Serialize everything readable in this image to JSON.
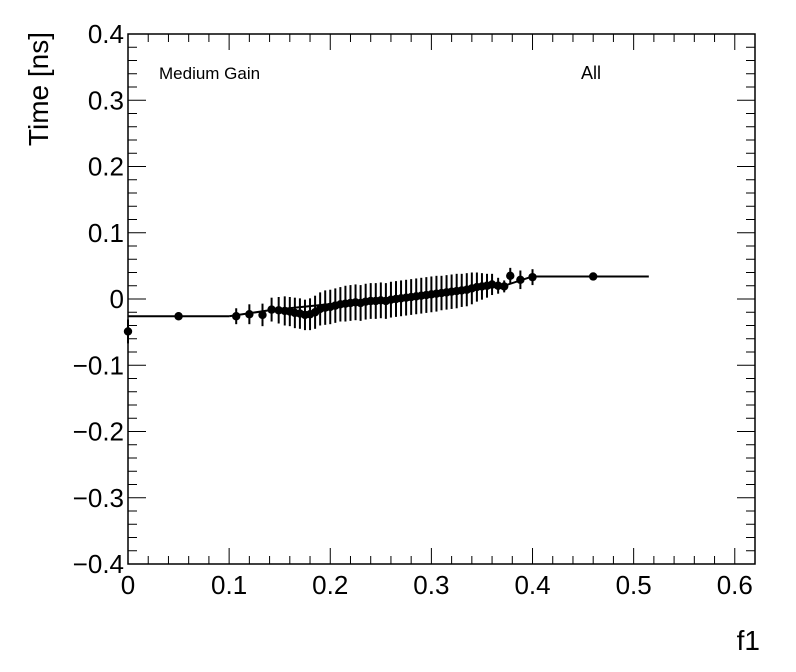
{
  "chart_data": {
    "type": "scatter",
    "xlabel": "f1",
    "ylabel": "Time [ns]",
    "xlim": [
      0,
      0.62
    ],
    "ylim": [
      -0.4,
      0.4
    ],
    "x_ticks": [
      0,
      0.1,
      0.2,
      0.3,
      0.4,
      0.5,
      0.6
    ],
    "x_tick_labels": [
      "0",
      "0.1",
      "0.2",
      "0.3",
      "0.4",
      "0.5",
      "0.6"
    ],
    "y_ticks": [
      -0.4,
      -0.3,
      -0.2,
      -0.1,
      0,
      0.1,
      0.2,
      0.3,
      0.4
    ],
    "y_tick_labels": [
      "−0.4",
      "−0.3",
      "−0.2",
      "−0.1",
      "0",
      "0.1",
      "0.2",
      "0.3",
      "0.4"
    ],
    "annotations": [
      "Medium Gain",
      "All"
    ],
    "grid": false,
    "points": [
      {
        "x": 0.0,
        "y": -0.049,
        "err": 0.018
      },
      {
        "x": 0.05,
        "y": -0.026,
        "err": 0.006
      },
      {
        "x": 0.107,
        "y": -0.026,
        "err": 0.012
      },
      {
        "x": 0.12,
        "y": -0.023,
        "err": 0.015
      },
      {
        "x": 0.133,
        "y": -0.024,
        "err": 0.017
      },
      {
        "x": 0.142,
        "y": -0.016,
        "err": 0.018
      },
      {
        "x": 0.149,
        "y": -0.017,
        "err": 0.02
      },
      {
        "x": 0.155,
        "y": -0.018,
        "err": 0.022
      },
      {
        "x": 0.16,
        "y": -0.019,
        "err": 0.022
      },
      {
        "x": 0.165,
        "y": -0.021,
        "err": 0.023
      },
      {
        "x": 0.17,
        "y": -0.022,
        "err": 0.023
      },
      {
        "x": 0.175,
        "y": -0.024,
        "err": 0.023
      },
      {
        "x": 0.18,
        "y": -0.023,
        "err": 0.024
      },
      {
        "x": 0.185,
        "y": -0.02,
        "err": 0.025
      },
      {
        "x": 0.19,
        "y": -0.015,
        "err": 0.025
      },
      {
        "x": 0.195,
        "y": -0.013,
        "err": 0.026
      },
      {
        "x": 0.2,
        "y": -0.012,
        "err": 0.026
      },
      {
        "x": 0.205,
        "y": -0.01,
        "err": 0.026
      },
      {
        "x": 0.21,
        "y": -0.008,
        "err": 0.026
      },
      {
        "x": 0.215,
        "y": -0.007,
        "err": 0.027
      },
      {
        "x": 0.22,
        "y": -0.006,
        "err": 0.027
      },
      {
        "x": 0.225,
        "y": -0.005,
        "err": 0.027
      },
      {
        "x": 0.23,
        "y": -0.006,
        "err": 0.027
      },
      {
        "x": 0.235,
        "y": -0.004,
        "err": 0.027
      },
      {
        "x": 0.24,
        "y": -0.003,
        "err": 0.027
      },
      {
        "x": 0.245,
        "y": -0.003,
        "err": 0.027
      },
      {
        "x": 0.25,
        "y": -0.002,
        "err": 0.027
      },
      {
        "x": 0.255,
        "y": -0.003,
        "err": 0.027
      },
      {
        "x": 0.26,
        "y": -0.001,
        "err": 0.027
      },
      {
        "x": 0.265,
        "y": 0.0,
        "err": 0.027
      },
      {
        "x": 0.27,
        "y": 0.001,
        "err": 0.027
      },
      {
        "x": 0.275,
        "y": 0.002,
        "err": 0.027
      },
      {
        "x": 0.28,
        "y": 0.003,
        "err": 0.027
      },
      {
        "x": 0.285,
        "y": 0.004,
        "err": 0.027
      },
      {
        "x": 0.29,
        "y": 0.005,
        "err": 0.027
      },
      {
        "x": 0.295,
        "y": 0.006,
        "err": 0.027
      },
      {
        "x": 0.3,
        "y": 0.007,
        "err": 0.027
      },
      {
        "x": 0.305,
        "y": 0.008,
        "err": 0.027
      },
      {
        "x": 0.31,
        "y": 0.009,
        "err": 0.026
      },
      {
        "x": 0.315,
        "y": 0.01,
        "err": 0.026
      },
      {
        "x": 0.32,
        "y": 0.011,
        "err": 0.026
      },
      {
        "x": 0.325,
        "y": 0.012,
        "err": 0.026
      },
      {
        "x": 0.33,
        "y": 0.013,
        "err": 0.025
      },
      {
        "x": 0.335,
        "y": 0.014,
        "err": 0.025
      },
      {
        "x": 0.34,
        "y": 0.016,
        "err": 0.024
      },
      {
        "x": 0.345,
        "y": 0.018,
        "err": 0.022
      },
      {
        "x": 0.35,
        "y": 0.019,
        "err": 0.02
      },
      {
        "x": 0.355,
        "y": 0.02,
        "err": 0.018
      },
      {
        "x": 0.36,
        "y": 0.022,
        "err": 0.016
      },
      {
        "x": 0.366,
        "y": 0.02,
        "err": 0.012
      },
      {
        "x": 0.372,
        "y": 0.019,
        "err": 0.009
      },
      {
        "x": 0.378,
        "y": 0.035,
        "err": 0.012
      },
      {
        "x": 0.388,
        "y": 0.029,
        "err": 0.014
      },
      {
        "x": 0.4,
        "y": 0.033,
        "err": 0.012
      },
      {
        "x": 0.46,
        "y": 0.034,
        "err": 0.006
      }
    ],
    "fit_line": {
      "segments": [
        {
          "x1": 0.0,
          "x2": 0.1,
          "y1": -0.026,
          "y2": -0.026
        },
        {
          "x1": 0.1,
          "x2": 0.14,
          "y1": -0.026,
          "y2": -0.017
        },
        {
          "x1": 0.14,
          "x2": 0.37,
          "y1": -0.017,
          "y2": 0.019
        },
        {
          "x1": 0.37,
          "x2": 0.4,
          "y1": 0.019,
          "y2": 0.034
        },
        {
          "x1": 0.4,
          "x2": 0.515,
          "y1": 0.034,
          "y2": 0.034
        }
      ]
    }
  }
}
